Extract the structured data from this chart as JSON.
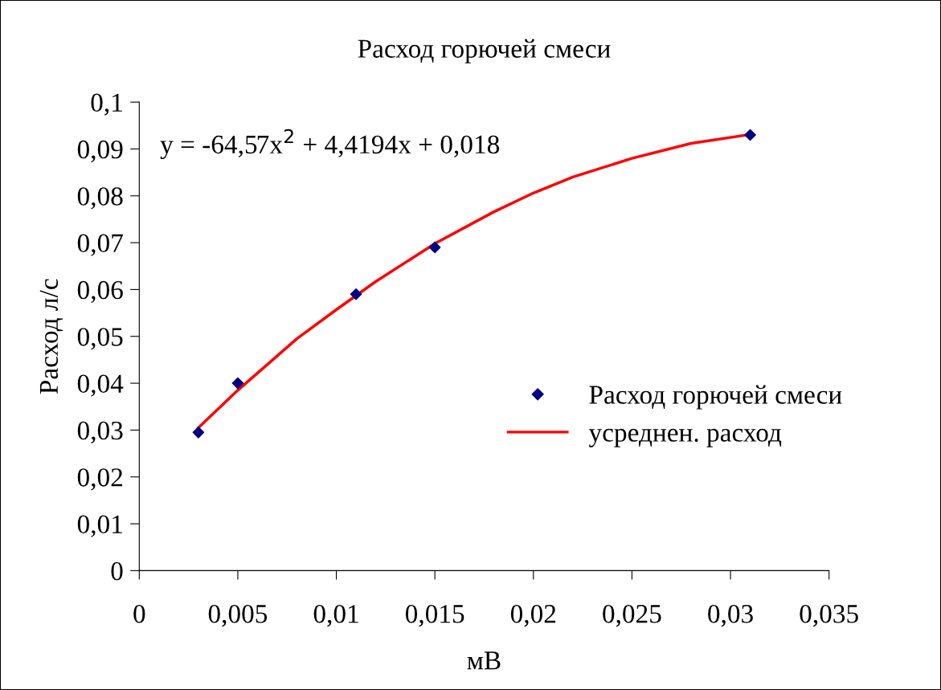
{
  "chart_data": {
    "type": "scatter",
    "title": "Расход горючей смеси",
    "xlabel": "мВ",
    "ylabel": "Расход л/с",
    "annotations": [
      "y = -64,57x$^{2}$ + 4,4194x + 0,018"
    ],
    "series": [
      {
        "name": "Расход горючей смеси",
        "color": "#000080",
        "marker": "diamond",
        "x": [
          0.003,
          0.005,
          0.011,
          0.015,
          0.031
        ],
        "values": [
          0.0295,
          0.04,
          0.059,
          0.069,
          0.093
        ]
      },
      {
        "name": "усреднен. расход",
        "type": "line",
        "color": "#ff0000",
        "marker": "none",
        "line_style": "solid",
        "x": [
          0.003,
          0.005,
          0.008,
          0.01,
          0.012,
          0.015,
          0.018,
          0.02,
          0.022,
          0.025,
          0.028,
          0.031
        ],
        "values": [
          0.0305,
          0.0385,
          0.0495,
          0.0557,
          0.0617,
          0.0698,
          0.0766,
          0.0806,
          0.084,
          0.088,
          0.0912,
          0.0931
        ]
      }
    ],
    "xlim": [
      0,
      0.035
    ],
    "ylim": [
      0,
      0.1
    ],
    "xticks": [
      0,
      {
        "value": 0.005,
        "label": "0,005"
      },
      {
        "value": 0.01,
        "label": "0,01"
      },
      {
        "value": 0.015,
        "label": "0,015"
      },
      {
        "value": 0.02,
        "label": "0,02"
      },
      {
        "value": 0.025,
        "label": "0,025"
      },
      {
        "value": 0.03,
        "label": "0,03"
      },
      {
        "value": 0.035,
        "label": "0,035"
      }
    ],
    "yticks": [
      0,
      {
        "value": 0.01,
        "label": "0,01"
      },
      {
        "value": 0.02,
        "label": "0,02"
      },
      {
        "value": 0.03,
        "label": "0,03"
      },
      {
        "value": 0.04,
        "label": "0,04"
      },
      {
        "value": 0.05,
        "label": "0,05"
      },
      {
        "value": 0.06,
        "label": "0,06"
      },
      {
        "value": 0.07,
        "label": "0,07"
      },
      {
        "value": 0.08,
        "label": "0,08"
      },
      {
        "value": 0.09,
        "label": "0,09"
      },
      {
        "value": 0.1,
        "label": "0,1"
      }
    ],
    "grid": false,
    "legend": "right"
  }
}
